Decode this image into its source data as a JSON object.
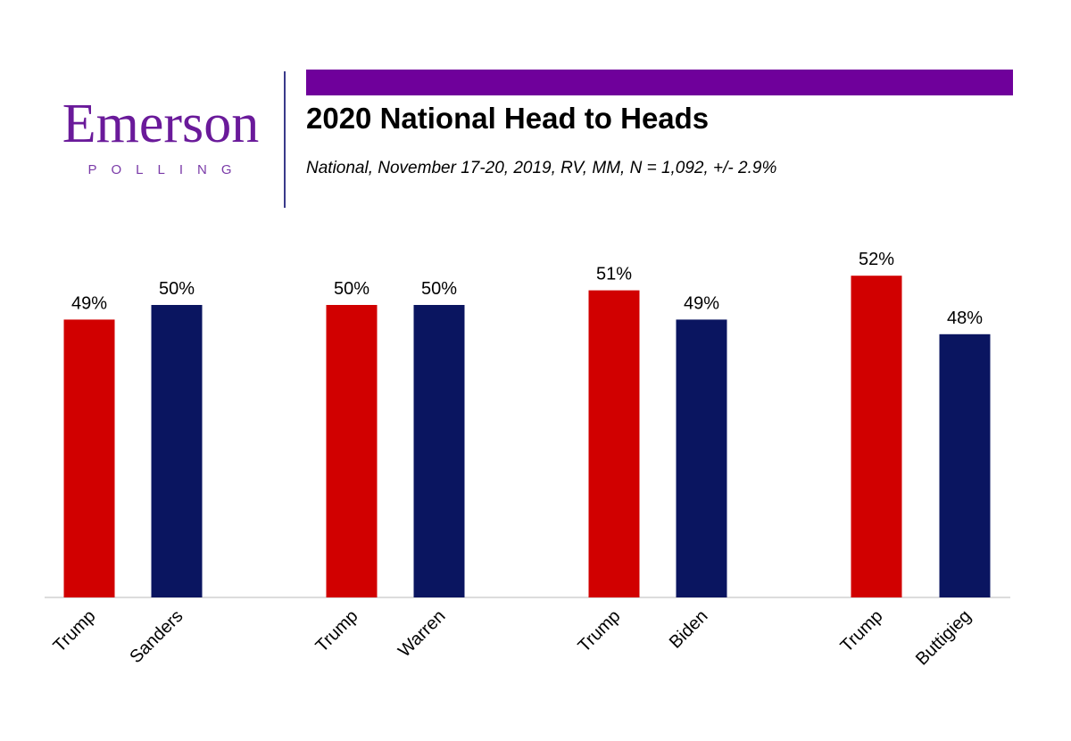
{
  "logo": {
    "name": "Emerson",
    "sub": "POLLING",
    "color": "#6a1a9a"
  },
  "header": {
    "accent_color": "#6f009b",
    "title": "2020 National Head to Heads",
    "subtitle": "National, November 17-20, 2019, RV, MM, N = 1,092,  +/- 2.9%"
  },
  "chart_data": {
    "type": "bar",
    "title": "2020 National Head to Heads",
    "categories": [
      "Trump",
      "Sanders",
      "Trump",
      "Warren",
      "Trump",
      "Biden",
      "Trump",
      "Buttigieg"
    ],
    "groups": [
      {
        "matchup": "Trump vs Sanders",
        "values": [
          49,
          50
        ]
      },
      {
        "matchup": "Trump vs Warren",
        "values": [
          50,
          50
        ]
      },
      {
        "matchup": "Trump vs Biden",
        "values": [
          51,
          49
        ]
      },
      {
        "matchup": "Trump vs Buttigieg",
        "values": [
          52,
          48
        ]
      }
    ],
    "values": [
      49,
      50,
      50,
      50,
      51,
      49,
      52,
      48
    ],
    "data_labels": [
      "49%",
      "50%",
      "50%",
      "50%",
      "51%",
      "49%",
      "52%",
      "48%"
    ],
    "colors": {
      "Trump": "#d10000",
      "Democrat": "#0a1560"
    },
    "ylim": [
      30,
      54
    ],
    "xlabel": "",
    "ylabel": "",
    "grid": false
  }
}
